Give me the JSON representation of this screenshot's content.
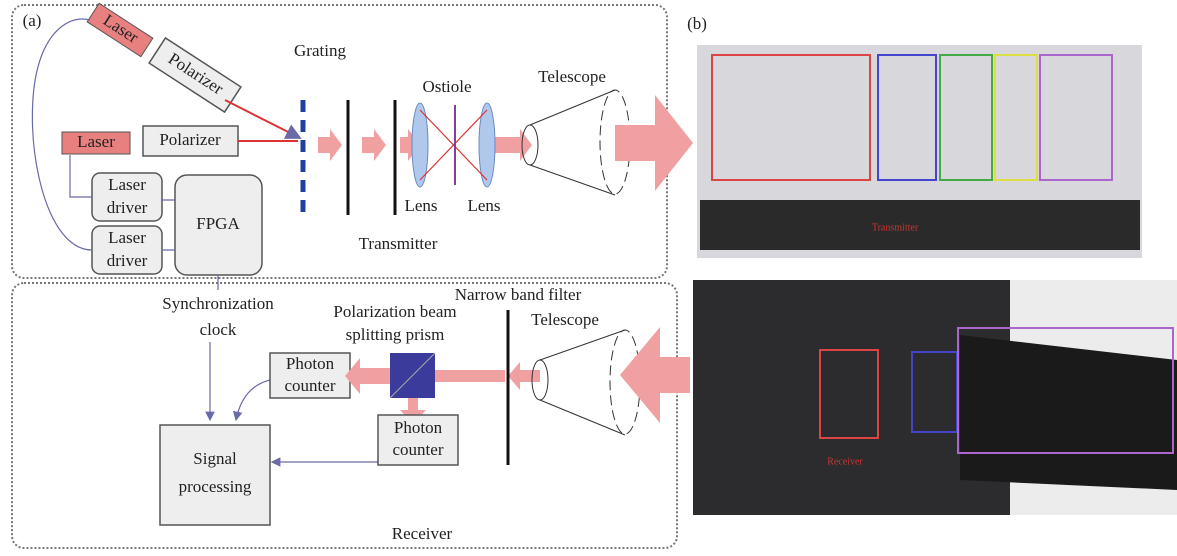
{
  "panel_a": {
    "label": "(a)",
    "transmitter": {
      "laser_tilted": "Laser",
      "polarizer_tilted": "Polarizer",
      "laser": "Laser",
      "polarizer": "Polarizer",
      "laser_driver_1": [
        "Laser",
        "driver"
      ],
      "laser_driver_2": [
        "Laser",
        "driver"
      ],
      "fpga": "FPGA",
      "grating": "Grating",
      "ostiole": "Ostiole",
      "lens_1": "Lens",
      "lens_2": "Lens",
      "telescope": "Telescope",
      "caption": "Transmitter"
    },
    "sync_clock": [
      "Synchronization",
      "clock"
    ],
    "receiver": {
      "narrow_band_filter": "Narrow band filter",
      "pbs_prism": [
        "Polarization beam",
        "splitting prism"
      ],
      "telescope": "Telescope",
      "photon_counter_1": [
        "Photon",
        "counter"
      ],
      "photon_counter_2": [
        "Photon",
        "counter"
      ],
      "signal_processing": [
        "Signal",
        "processing"
      ],
      "caption": "Receiver"
    }
  },
  "panel_b": {
    "label": "(b)",
    "transmitter_photo_label": "Transmitter",
    "receiver_photo_label": "Receiver"
  }
}
